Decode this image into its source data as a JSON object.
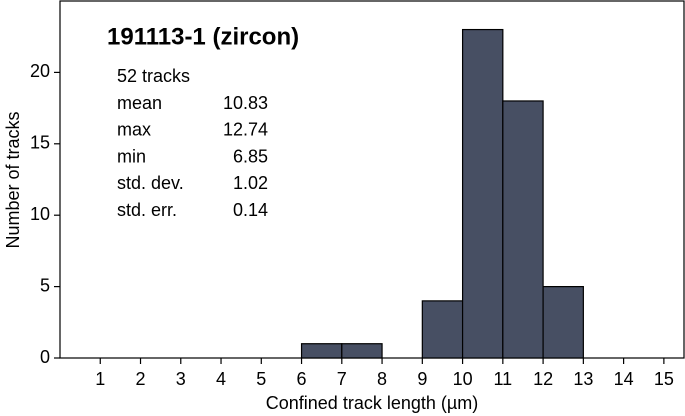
{
  "chart_data": {
    "type": "histogram",
    "title": "191113-1 (zircon)",
    "annotation": "52 tracks",
    "stats": [
      {
        "label": "mean",
        "value": 10.83
      },
      {
        "label": "max",
        "value": 12.74
      },
      {
        "label": "min",
        "value": 6.85
      },
      {
        "label": "std. dev.",
        "value": 1.02
      },
      {
        "label": "std. err.",
        "value": 0.14
      }
    ],
    "x_label": "Confined track length (µm)",
    "y_label": "Number of tracks",
    "bins": [
      6,
      7,
      8,
      9,
      10,
      11,
      12,
      13
    ],
    "values": [
      1,
      1,
      0,
      4,
      23,
      18,
      5
    ],
    "color": "#474f63",
    "xlim": [
      0,
      15.5
    ],
    "ylim": [
      0,
      25
    ],
    "xticks": [
      1,
      2,
      3,
      4,
      5,
      6,
      7,
      8,
      9,
      10,
      11,
      12,
      13,
      14,
      15
    ],
    "yticks": [
      0,
      5,
      10,
      15,
      20
    ]
  }
}
